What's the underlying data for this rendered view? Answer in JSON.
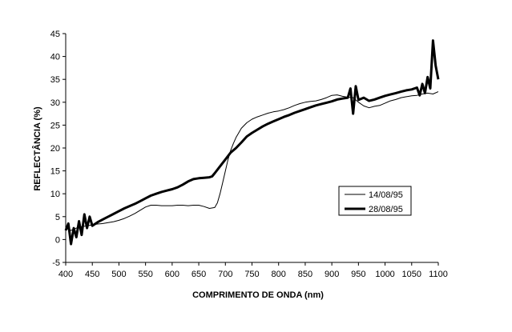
{
  "chart_data": {
    "type": "line",
    "title": "",
    "xlabel": "COMPRIMENTO DE ONDA (nm)",
    "ylabel": "REFLECTÂNCIA (%)",
    "xlim": [
      400,
      1100
    ],
    "ylim": [
      -5,
      45
    ],
    "xticks": [
      400,
      450,
      500,
      550,
      600,
      650,
      700,
      750,
      800,
      850,
      900,
      950,
      1000,
      1050,
      1100
    ],
    "yticks": [
      -5,
      0,
      5,
      10,
      15,
      20,
      25,
      30,
      35,
      40,
      45
    ],
    "grid": false,
    "legend_position": "right-center",
    "series": [
      {
        "name": "14/08/95",
        "style": "thin",
        "color": "#000000",
        "points": [
          [
            400,
            2.5
          ],
          [
            410,
            2.0
          ],
          [
            420,
            2.5
          ],
          [
            430,
            2.8
          ],
          [
            440,
            3.0
          ],
          [
            450,
            3.2
          ],
          [
            460,
            3.4
          ],
          [
            470,
            3.5
          ],
          [
            480,
            3.7
          ],
          [
            490,
            3.9
          ],
          [
            500,
            4.2
          ],
          [
            510,
            4.6
          ],
          [
            520,
            5.1
          ],
          [
            530,
            5.7
          ],
          [
            540,
            6.4
          ],
          [
            550,
            7.1
          ],
          [
            560,
            7.5
          ],
          [
            570,
            7.5
          ],
          [
            580,
            7.4
          ],
          [
            590,
            7.4
          ],
          [
            600,
            7.4
          ],
          [
            610,
            7.5
          ],
          [
            620,
            7.5
          ],
          [
            630,
            7.4
          ],
          [
            640,
            7.5
          ],
          [
            650,
            7.5
          ],
          [
            660,
            7.2
          ],
          [
            670,
            6.8
          ],
          [
            680,
            7.0
          ],
          [
            685,
            8.0
          ],
          [
            690,
            10.0
          ],
          [
            695,
            12.5
          ],
          [
            700,
            15.0
          ],
          [
            705,
            17.5
          ],
          [
            710,
            19.5
          ],
          [
            715,
            21.0
          ],
          [
            720,
            22.3
          ],
          [
            725,
            23.3
          ],
          [
            730,
            24.3
          ],
          [
            740,
            25.5
          ],
          [
            750,
            26.3
          ],
          [
            760,
            26.8
          ],
          [
            770,
            27.2
          ],
          [
            780,
            27.6
          ],
          [
            790,
            27.9
          ],
          [
            800,
            28.1
          ],
          [
            810,
            28.4
          ],
          [
            820,
            28.8
          ],
          [
            830,
            29.3
          ],
          [
            840,
            29.7
          ],
          [
            850,
            30.0
          ],
          [
            860,
            30.2
          ],
          [
            870,
            30.3
          ],
          [
            880,
            30.6
          ],
          [
            890,
            31.0
          ],
          [
            900,
            31.5
          ],
          [
            910,
            31.6
          ],
          [
            920,
            31.3
          ],
          [
            930,
            31.1
          ],
          [
            940,
            31.0
          ],
          [
            950,
            30.0
          ],
          [
            960,
            29.2
          ],
          [
            970,
            28.8
          ],
          [
            980,
            29.1
          ],
          [
            990,
            29.3
          ],
          [
            1000,
            29.8
          ],
          [
            1010,
            30.3
          ],
          [
            1020,
            30.6
          ],
          [
            1030,
            31.0
          ],
          [
            1040,
            31.2
          ],
          [
            1050,
            31.4
          ],
          [
            1060,
            31.5
          ],
          [
            1070,
            31.8
          ],
          [
            1080,
            32.0
          ],
          [
            1090,
            31.8
          ],
          [
            1100,
            32.3
          ]
        ]
      },
      {
        "name": "28/08/95",
        "style": "thick",
        "color": "#000000",
        "points": [
          [
            400,
            2.0
          ],
          [
            405,
            3.5
          ],
          [
            410,
            -1.0
          ],
          [
            415,
            2.5
          ],
          [
            420,
            0.5
          ],
          [
            425,
            4.0
          ],
          [
            430,
            1.0
          ],
          [
            435,
            5.5
          ],
          [
            440,
            2.5
          ],
          [
            445,
            5.0
          ],
          [
            450,
            3.0
          ],
          [
            460,
            3.8
          ],
          [
            470,
            4.4
          ],
          [
            480,
            5.0
          ],
          [
            490,
            5.6
          ],
          [
            500,
            6.2
          ],
          [
            510,
            6.8
          ],
          [
            520,
            7.3
          ],
          [
            530,
            7.8
          ],
          [
            540,
            8.4
          ],
          [
            550,
            9.0
          ],
          [
            560,
            9.6
          ],
          [
            570,
            10.0
          ],
          [
            580,
            10.4
          ],
          [
            590,
            10.7
          ],
          [
            600,
            11.0
          ],
          [
            610,
            11.4
          ],
          [
            620,
            12.0
          ],
          [
            630,
            12.7
          ],
          [
            640,
            13.2
          ],
          [
            650,
            13.4
          ],
          [
            660,
            13.5
          ],
          [
            670,
            13.6
          ],
          [
            675,
            13.8
          ],
          [
            680,
            14.5
          ],
          [
            690,
            16.0
          ],
          [
            700,
            17.5
          ],
          [
            710,
            19.0
          ],
          [
            720,
            20.0
          ],
          [
            730,
            21.2
          ],
          [
            740,
            22.5
          ],
          [
            750,
            23.3
          ],
          [
            760,
            24.0
          ],
          [
            770,
            24.7
          ],
          [
            780,
            25.3
          ],
          [
            790,
            25.8
          ],
          [
            800,
            26.3
          ],
          [
            810,
            26.8
          ],
          [
            820,
            27.2
          ],
          [
            830,
            27.7
          ],
          [
            840,
            28.1
          ],
          [
            850,
            28.5
          ],
          [
            860,
            28.9
          ],
          [
            870,
            29.3
          ],
          [
            880,
            29.6
          ],
          [
            890,
            29.9
          ],
          [
            900,
            30.2
          ],
          [
            910,
            30.6
          ],
          [
            920,
            30.8
          ],
          [
            930,
            31.0
          ],
          [
            935,
            33.0
          ],
          [
            940,
            27.5
          ],
          [
            945,
            33.5
          ],
          [
            950,
            30.5
          ],
          [
            960,
            31.0
          ],
          [
            970,
            30.3
          ],
          [
            980,
            30.6
          ],
          [
            990,
            31.0
          ],
          [
            1000,
            31.4
          ],
          [
            1010,
            31.7
          ],
          [
            1020,
            32.0
          ],
          [
            1030,
            32.3
          ],
          [
            1040,
            32.6
          ],
          [
            1050,
            32.8
          ],
          [
            1060,
            33.2
          ],
          [
            1065,
            31.5
          ],
          [
            1070,
            34.0
          ],
          [
            1075,
            32.0
          ],
          [
            1080,
            35.5
          ],
          [
            1085,
            33.0
          ],
          [
            1090,
            43.5
          ],
          [
            1095,
            38.0
          ],
          [
            1100,
            35.0
          ]
        ]
      }
    ]
  }
}
